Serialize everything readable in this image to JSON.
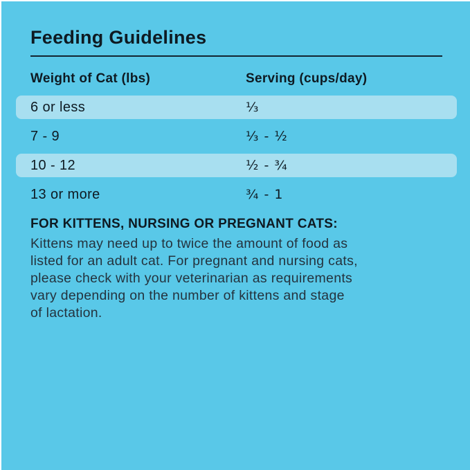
{
  "page": {
    "title": "Feeding Guidelines"
  },
  "colors": {
    "background": "#59C8E8",
    "row_highlight": "#A8DFF0",
    "heading_text": "#0E1A22",
    "body_text": "#24333E",
    "rule": "#132430"
  },
  "table": {
    "columns": [
      {
        "label": "Weight of Cat (lbs)"
      },
      {
        "label": "Serving (cups/day)"
      }
    ],
    "rows": [
      {
        "weight": "6 or less",
        "serving": "⅓"
      },
      {
        "weight": "7 - 9",
        "serving": "⅓ - ½"
      },
      {
        "weight": "10 - 12",
        "serving": "½ - ¾"
      },
      {
        "weight": "13 or more",
        "serving": "¾ - 1"
      }
    ]
  },
  "note": {
    "heading": "FOR KITTENS, NURSING OR PREGNANT CATS:",
    "body_lines": [
      "Kittens may need up to twice the amount of food as",
      "listed for an adult cat. For pregnant and nursing cats,",
      "please check with your veterinarian as requirements",
      "vary depending on the number of kittens and stage",
      "of lactation."
    ]
  }
}
